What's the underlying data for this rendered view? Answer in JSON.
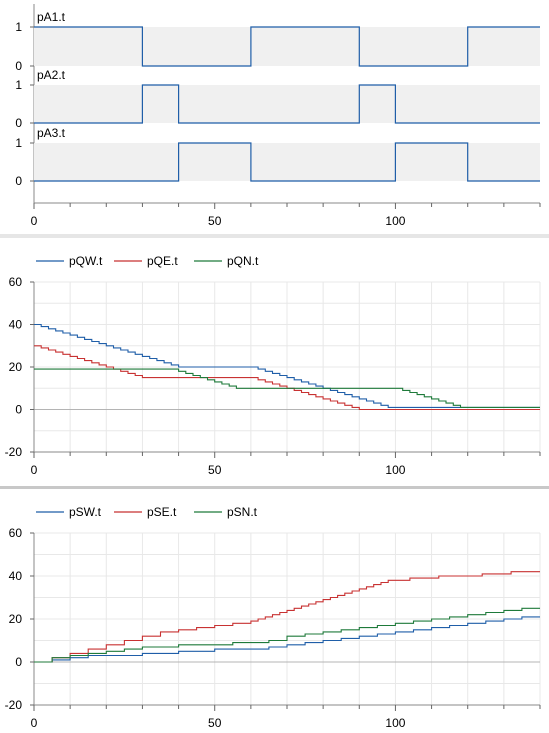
{
  "chart_data": [
    {
      "type": "line",
      "xlim": [
        0,
        140
      ],
      "xticks": [
        0,
        50,
        100
      ],
      "signals": [
        {
          "name": "pA1.t",
          "color": "#1f5ea8",
          "yticks": [
            "1",
            "0"
          ],
          "x": [
            0,
            30,
            30,
            60,
            60,
            90,
            90,
            120,
            120,
            140
          ],
          "y": [
            1,
            1,
            0,
            0,
            1,
            1,
            0,
            0,
            1,
            1
          ]
        },
        {
          "name": "pA2.t",
          "color": "#1f5ea8",
          "yticks": [
            "1",
            "0"
          ],
          "x": [
            0,
            30,
            30,
            40,
            40,
            90,
            90,
            100,
            100,
            140
          ],
          "y": [
            0,
            0,
            1,
            1,
            0,
            0,
            1,
            1,
            0,
            0
          ]
        },
        {
          "name": "pA3.t",
          "color": "#1f5ea8",
          "yticks": [
            "1",
            "0"
          ],
          "x": [
            0,
            40,
            40,
            60,
            60,
            100,
            100,
            120,
            120,
            140
          ],
          "y": [
            0,
            0,
            1,
            1,
            0,
            0,
            1,
            1,
            0,
            0
          ]
        }
      ]
    },
    {
      "type": "line",
      "xlim": [
        0,
        140
      ],
      "ylim": [
        -20,
        60
      ],
      "xticks": [
        0,
        50,
        100
      ],
      "yticks": [
        -20,
        0,
        20,
        40,
        60
      ],
      "grid": true,
      "legend": "top",
      "series": [
        {
          "name": "pQW.t",
          "color": "#1f5ea8",
          "x": [
            0,
            2,
            4,
            6,
            8,
            10,
            12,
            14,
            16,
            18,
            20,
            22,
            24,
            26,
            28,
            30,
            32,
            34,
            36,
            38,
            40,
            42,
            44,
            46,
            48,
            50,
            52,
            54,
            56,
            58,
            60,
            62,
            64,
            66,
            68,
            70,
            72,
            74,
            76,
            78,
            80,
            82,
            84,
            86,
            88,
            90,
            92,
            94,
            96,
            98,
            100,
            140
          ],
          "y": [
            40,
            39,
            38,
            37,
            36,
            35,
            34,
            33,
            32,
            31,
            30,
            29,
            28,
            27,
            26,
            25,
            24,
            23,
            22,
            21,
            20,
            20,
            20,
            20,
            20,
            20,
            20,
            20,
            20,
            20,
            20,
            19,
            18,
            17,
            16,
            15,
            14,
            13,
            12,
            11,
            10,
            9,
            8,
            7,
            6,
            5,
            4,
            3,
            2,
            1,
            1,
            1
          ]
        },
        {
          "name": "pQE.t",
          "color": "#c83232",
          "x": [
            0,
            2,
            4,
            6,
            8,
            10,
            12,
            14,
            16,
            18,
            20,
            22,
            24,
            26,
            28,
            30,
            60,
            62,
            64,
            66,
            68,
            70,
            72,
            74,
            76,
            78,
            80,
            82,
            84,
            86,
            88,
            90,
            140
          ],
          "y": [
            30,
            29,
            28,
            27,
            26,
            25,
            24,
            23,
            22,
            21,
            20,
            19,
            18,
            17,
            16,
            15,
            15,
            14,
            13,
            12,
            11,
            10,
            9,
            8,
            7,
            6,
            5,
            4,
            3,
            2,
            1,
            0,
            0
          ]
        },
        {
          "name": "pQN.t",
          "color": "#1e7a3a",
          "x": [
            0,
            30,
            40,
            42,
            44,
            46,
            48,
            50,
            52,
            54,
            56,
            58,
            60,
            90,
            100,
            102,
            104,
            106,
            108,
            110,
            112,
            114,
            116,
            118,
            120,
            140
          ],
          "y": [
            19,
            19,
            18,
            17,
            16,
            15,
            14,
            13,
            12,
            11,
            10,
            10,
            10,
            10,
            10,
            9,
            8,
            7,
            6,
            5,
            4,
            3,
            2,
            1,
            1,
            1
          ]
        }
      ]
    },
    {
      "type": "line",
      "xlim": [
        0,
        140
      ],
      "ylim": [
        -20,
        60
      ],
      "xticks": [
        0,
        50,
        100
      ],
      "yticks": [
        -20,
        0,
        20,
        40,
        60
      ],
      "grid": true,
      "legend": "top",
      "series": [
        {
          "name": "pSW.t",
          "color": "#1f5ea8",
          "x": [
            0,
            5,
            10,
            15,
            20,
            25,
            30,
            40,
            45,
            50,
            55,
            60,
            65,
            70,
            75,
            80,
            85,
            90,
            95,
            100,
            105,
            110,
            115,
            120,
            125,
            130,
            135,
            140
          ],
          "y": [
            0,
            1,
            2,
            3,
            3,
            3,
            4,
            5,
            5,
            6,
            6,
            6,
            7,
            8,
            9,
            10,
            11,
            12,
            13,
            14,
            15,
            16,
            17,
            18,
            19,
            20,
            21,
            21
          ]
        },
        {
          "name": "pSE.t",
          "color": "#c83232",
          "x": [
            0,
            5,
            10,
            15,
            20,
            25,
            30,
            35,
            40,
            45,
            50,
            55,
            60,
            62,
            64,
            66,
            68,
            70,
            72,
            74,
            76,
            78,
            80,
            82,
            84,
            86,
            88,
            90,
            92,
            94,
            96,
            98,
            100,
            104,
            108,
            112,
            116,
            120,
            124,
            128,
            132,
            136,
            140
          ],
          "y": [
            0,
            2,
            4,
            6,
            8,
            10,
            12,
            14,
            15,
            16,
            17,
            18,
            19,
            20,
            21,
            22,
            23,
            24,
            25,
            26,
            27,
            28,
            29,
            30,
            31,
            32,
            33,
            34,
            35,
            36,
            37,
            38,
            38,
            39,
            39,
            40,
            40,
            40,
            41,
            41,
            42,
            42,
            42
          ]
        },
        {
          "name": "pSN.t",
          "color": "#1e7a3a",
          "x": [
            0,
            5,
            10,
            15,
            20,
            25,
            30,
            40,
            45,
            50,
            55,
            60,
            65,
            70,
            75,
            80,
            85,
            90,
            95,
            100,
            105,
            110,
            115,
            120,
            125,
            130,
            135,
            140
          ],
          "y": [
            0,
            2,
            3,
            4,
            5,
            6,
            7,
            8,
            8,
            8,
            9,
            9,
            10,
            12,
            13,
            14,
            15,
            16,
            17,
            18,
            19,
            20,
            21,
            22,
            23,
            24,
            25,
            25
          ]
        }
      ]
    }
  ]
}
